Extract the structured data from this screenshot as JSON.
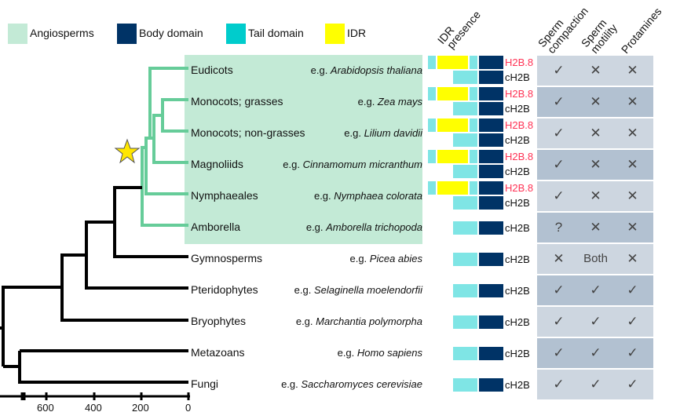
{
  "legend": [
    {
      "label": "Angiosperms",
      "color": "#c3ead6"
    },
    {
      "label": "Body domain",
      "color": "#003366"
    },
    {
      "label": "Tail domain",
      "color": "#00cccc"
    },
    {
      "label": "IDR",
      "color": "#ffff00"
    }
  ],
  "headers": {
    "idr": "IDR",
    "presence": "presence",
    "sperm1": "Sperm",
    "compaction": "compaction",
    "sperm2": "Sperm",
    "motility": "motility",
    "protamines": "Protamines"
  },
  "colors": {
    "h2b8": "#ff3355",
    "tail_bar": "#7fe5e5",
    "body_bar": "#003366",
    "idr_bar": "#ffff00",
    "row_light": "#cdd6e0",
    "row_dark": "#b2c1d1",
    "angio_branch": "#66cc99",
    "star": "#ffe600"
  },
  "rows": [
    {
      "taxon": "Eudicots",
      "prefix": "e.g. ",
      "species": "Arabidopsis thaliana",
      "h2b8": true,
      "variant": "H2B.8",
      "canonical": "cH2B",
      "compaction": "✓",
      "motility": "✕",
      "protamines": "✕"
    },
    {
      "taxon": "Monocots; grasses",
      "prefix": "e.g. ",
      "species": "Zea mays",
      "h2b8": true,
      "variant": "H2B.8",
      "canonical": "cH2B",
      "compaction": "✓",
      "motility": "✕",
      "protamines": "✕"
    },
    {
      "taxon": "Monocots; non-grasses",
      "prefix": "e.g. ",
      "species": "Lilium davidii",
      "h2b8": true,
      "variant": "H2B.8",
      "canonical": "cH2B",
      "compaction": "✓",
      "motility": "✕",
      "protamines": "✕"
    },
    {
      "taxon": "Magnoliids",
      "prefix": "e.g. ",
      "species": "Cinnamomum micranthum",
      "h2b8": true,
      "variant": "H2B.8",
      "canonical": "cH2B",
      "compaction": "✓",
      "motility": "✕",
      "protamines": "✕"
    },
    {
      "taxon": "Nymphaeales",
      "prefix": "e.g. ",
      "species": "Nymphaea colorata",
      "h2b8": true,
      "variant": "H2B.8",
      "canonical": "cH2B",
      "compaction": "✓",
      "motility": "✕",
      "protamines": "✕"
    },
    {
      "taxon": "Amborella",
      "prefix": "e.g. ",
      "species": "Amborella trichopoda",
      "h2b8": false,
      "canonical": "cH2B",
      "compaction": "?",
      "motility": "✕",
      "protamines": "✕"
    },
    {
      "taxon": "Gymnosperms",
      "prefix": "e.g. ",
      "species": "Picea abies",
      "h2b8": false,
      "canonical": "cH2B",
      "compaction": "✕",
      "motility": "Both",
      "protamines": "✕"
    },
    {
      "taxon": "Pteridophytes",
      "prefix": "e.g. ",
      "species": "Selaginella moelendorfii",
      "h2b8": false,
      "canonical": "cH2B",
      "compaction": "✓",
      "motility": "✓",
      "protamines": "✓"
    },
    {
      "taxon": "Bryophytes",
      "prefix": "e.g. ",
      "species": "Marchantia polymorpha",
      "h2b8": false,
      "canonical": "cH2B",
      "compaction": "✓",
      "motility": "✓",
      "protamines": "✓"
    },
    {
      "taxon": "Metazoans",
      "prefix": "e.g. ",
      "species": "Homo sapiens",
      "h2b8": false,
      "canonical": "cH2B",
      "compaction": "✓",
      "motility": "✓",
      "protamines": "✓"
    },
    {
      "taxon": "Fungi",
      "prefix": "e.g. ",
      "species": "Saccharomyces cerevisiae",
      "h2b8": false,
      "canonical": "cH2B",
      "compaction": "✓",
      "motility": "✓",
      "protamines": "✓"
    }
  ],
  "axis": {
    "ticks": [
      "600",
      "400",
      "200",
      "0"
    ]
  }
}
